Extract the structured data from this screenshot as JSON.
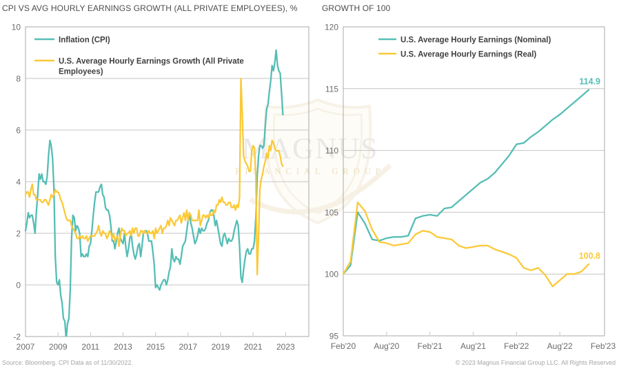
{
  "footer": {
    "source": "Source: Bloomberg. CPI Data as of 11/30/2022.",
    "copyright": "© 2023 Magnus Financial Group LLC. All Rights Reserved"
  },
  "watermark": {
    "name": "MAGNUS",
    "subtitle": "FINANCIAL GROUP"
  },
  "colors": {
    "teal": "#55BDB5",
    "gold": "#FBC937",
    "grid": "#c4c4c4",
    "border": "#a8a8a8",
    "axis_text": "#6b6b6b",
    "legend_text": "#3f3f3f"
  },
  "chart_data": [
    {
      "type": "line",
      "title": "CPI VS AVG HOURLY EARNINGS GROWTH (ALL PRIVATE EMPLOYEES), %",
      "x_start": "2007-01",
      "x_end": "2022-11",
      "freq": "monthly",
      "xtick_labels": [
        "2007",
        "2009",
        "2011",
        "2013",
        "2015",
        "2017",
        "2019",
        "2021",
        "2023"
      ],
      "ylim": [
        -2,
        10
      ],
      "ytick_step": 2,
      "grid": "horizontal",
      "legend_position": "top-left-inside",
      "series": [
        {
          "key": "inflation-cpi",
          "name": "Inflation (CPI)",
          "color": "teal",
          "values": [
            2.1,
            2.4,
            2.8,
            2.6,
            2.7,
            2.7,
            2.4,
            2.0,
            2.8,
            3.5,
            4.3,
            4.1,
            4.3,
            4.0,
            4.0,
            3.9,
            4.2,
            5.0,
            5.6,
            5.4,
            4.9,
            3.7,
            1.1,
            0.1,
            0.0,
            0.2,
            -0.4,
            -0.7,
            -1.3,
            -1.4,
            -2.1,
            -1.5,
            -1.3,
            -0.2,
            1.8,
            2.7,
            2.6,
            2.1,
            2.3,
            2.2,
            2.0,
            1.1,
            1.2,
            1.1,
            1.1,
            1.2,
            1.1,
            1.5,
            1.6,
            2.1,
            2.7,
            3.2,
            3.6,
            3.6,
            3.6,
            3.8,
            3.9,
            3.5,
            3.4,
            3.0,
            2.9,
            2.9,
            2.7,
            2.3,
            1.7,
            1.7,
            1.4,
            1.7,
            2.0,
            2.2,
            1.8,
            1.7,
            1.6,
            2.0,
            1.5,
            1.1,
            1.4,
            1.8,
            2.0,
            1.5,
            1.2,
            1.0,
            1.2,
            1.5,
            1.6,
            1.1,
            1.5,
            2.0,
            2.1,
            2.1,
            2.0,
            1.7,
            1.7,
            1.7,
            1.3,
            0.8,
            -0.1,
            0.0,
            -0.1,
            -0.2,
            0.0,
            0.1,
            0.2,
            0.2,
            0.0,
            0.2,
            0.5,
            0.7,
            1.4,
            1.0,
            0.9,
            1.1,
            1.0,
            1.0,
            0.8,
            1.1,
            1.5,
            1.6,
            1.7,
            2.1,
            2.5,
            2.7,
            2.4,
            2.2,
            1.9,
            1.6,
            1.7,
            1.9,
            2.2,
            2.0,
            2.2,
            2.1,
            2.1,
            2.2,
            2.4,
            2.5,
            2.8,
            2.9,
            2.9,
            2.7,
            2.3,
            2.5,
            2.2,
            1.9,
            1.6,
            1.5,
            1.9,
            2.0,
            1.8,
            1.6,
            1.8,
            1.7,
            1.7,
            1.8,
            2.1,
            2.3,
            2.5,
            2.3,
            1.5,
            0.3,
            0.1,
            0.6,
            1.0,
            1.3,
            1.4,
            1.2,
            1.2,
            1.4,
            1.4,
            1.7,
            2.6,
            4.2,
            5.0,
            5.4,
            5.4,
            5.3,
            5.4,
            6.2,
            6.8,
            7.0,
            7.5,
            7.9,
            8.5,
            8.3,
            8.6,
            9.1,
            8.5,
            8.3,
            8.2,
            7.4,
            6.6
          ]
        },
        {
          "key": "ahe-growth",
          "name": "U.S. Average Hourly Earnings Growth (All Private Employees)",
          "color": "gold",
          "values": [
            3.5,
            3.6,
            3.6,
            3.4,
            3.7,
            3.9,
            3.5,
            3.5,
            3.3,
            3.3,
            3.3,
            3.3,
            3.2,
            3.2,
            3.3,
            3.3,
            3.2,
            3.1,
            3.3,
            3.5,
            3.4,
            3.5,
            3.7,
            3.6,
            3.6,
            3.5,
            3.3,
            3.2,
            3.0,
            2.8,
            2.6,
            2.5,
            2.5,
            2.5,
            2.3,
            2.2,
            2.1,
            2.0,
            1.8,
            1.8,
            1.9,
            1.8,
            1.9,
            1.8,
            1.8,
            1.9,
            1.7,
            1.8,
            1.9,
            1.9,
            1.9,
            1.9,
            2.0,
            2.1,
            2.3,
            2.0,
            1.9,
            2.1,
            2.0,
            2.0,
            1.8,
            1.9,
            2.1,
            2.0,
            1.8,
            2.0,
            1.7,
            1.8,
            1.9,
            1.5,
            1.9,
            2.2,
            2.1,
            2.1,
            1.9,
            2.0,
            2.0,
            2.1,
            1.9,
            2.2,
            2.0,
            2.2,
            2.2,
            1.9,
            1.9,
            2.1,
            2.1,
            2.0,
            2.1,
            2.0,
            2.0,
            2.1,
            2.0,
            2.0,
            2.1,
            1.8,
            2.2,
            2.0,
            2.1,
            2.2,
            2.3,
            2.0,
            2.2,
            2.2,
            2.3,
            2.5,
            2.3,
            2.6,
            2.5,
            2.4,
            2.3,
            2.5,
            2.5,
            2.6,
            2.7,
            2.4,
            2.6,
            2.8,
            2.5,
            2.9,
            2.5,
            2.8,
            2.7,
            2.5,
            2.5,
            2.5,
            2.5,
            2.5,
            2.9,
            2.3,
            2.5,
            2.7,
            2.7,
            2.6,
            2.7,
            2.6,
            2.8,
            2.7,
            2.7,
            2.9,
            2.8,
            3.1,
            3.1,
            3.3,
            3.2,
            3.4,
            3.2,
            3.2,
            3.1,
            3.1,
            3.2,
            3.2,
            3.0,
            3.0,
            3.1,
            2.9,
            3.1,
            3.0,
            3.4,
            8.0,
            6.6,
            5.0,
            4.8,
            4.7,
            4.6,
            4.4,
            4.4,
            5.2,
            5.4,
            5.3,
            4.2,
            0.4,
            1.9,
            3.7,
            4.1,
            4.3,
            4.6,
            4.8,
            5.1,
            4.9,
            5.4,
            5.2,
            5.6,
            5.5,
            5.3,
            5.2,
            5.2,
            5.2,
            5.0,
            4.7,
            4.6
          ]
        }
      ],
      "legend_lines": [
        [
          "Inflation (CPI)"
        ],
        [
          "U.S. Average Hourly Earnings Growth (All Private",
          "Employees)"
        ]
      ]
    },
    {
      "type": "line",
      "title": "GROWTH OF 100",
      "x_start": "2020-02",
      "x_end": "2022-12",
      "freq": "monthly",
      "xtick_labels": [
        "Feb'20",
        "Aug'20",
        "Feb'21",
        "Aug'21",
        "Feb'22",
        "Aug'22",
        "Feb'23"
      ],
      "ylim": [
        95,
        120
      ],
      "ytick_step": 5,
      "grid": "horizontal",
      "legend_position": "top-center-inside",
      "series": [
        {
          "key": "ahe-nominal",
          "name": "U.S. Average Hourly Earnings (Nominal)",
          "color": "teal",
          "end_label": "114.9",
          "values": [
            100.0,
            100.7,
            105.0,
            104.1,
            102.8,
            102.7,
            102.9,
            103.0,
            103.0,
            103.1,
            104.5,
            104.7,
            104.8,
            104.7,
            105.3,
            105.4,
            105.9,
            106.4,
            106.9,
            107.4,
            107.7,
            108.2,
            108.9,
            109.6,
            110.5,
            110.6,
            111.1,
            111.5,
            112.0,
            112.5,
            112.9,
            113.4,
            113.9,
            114.4,
            114.9
          ]
        },
        {
          "key": "ahe-real",
          "name": "U.S. Average Hourly Earnings (Real)",
          "color": "gold",
          "end_label": "100.8",
          "values": [
            100.0,
            101.0,
            105.8,
            105.1,
            103.6,
            102.6,
            102.5,
            102.3,
            102.4,
            102.5,
            103.2,
            103.5,
            103.4,
            103.0,
            102.9,
            102.8,
            102.3,
            102.1,
            102.2,
            102.3,
            102.3,
            102.0,
            101.8,
            101.6,
            101.3,
            100.5,
            100.3,
            100.5,
            99.9,
            99.0,
            99.5,
            100.0,
            100.0,
            100.2,
            100.8
          ]
        }
      ],
      "legend_lines": [
        [
          "U.S. Average Hourly Earnings (Nominal)"
        ],
        [
          "U.S. Average Hourly Earnings (Real)"
        ]
      ]
    }
  ]
}
